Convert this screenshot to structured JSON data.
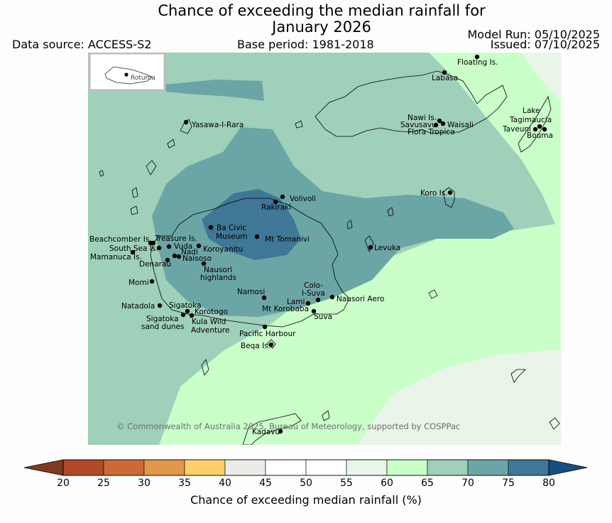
{
  "title_line1": "Chance of exceeding the median rainfall for",
  "title_line2": "January 2026",
  "data_source": "Data source: ACCESS-S2",
  "base_period": "Base period: 1981-2018",
  "model_run": "Model Run: 05/10/2025",
  "issued": "Issued: 07/10/2025",
  "copyright": "© Commonwealth of Australia 2025, Bureau of Meteorology, supported by COSPPac",
  "inset_label": "Rotuma",
  "colorbar": {
    "label": "Chance of exceeding median rainfall (%)",
    "ticks": [
      "20",
      "25",
      "30",
      "35",
      "40",
      "45",
      "50",
      "55",
      "60",
      "65",
      "70",
      "75",
      "80"
    ],
    "colors": [
      "#b04a27",
      "#cc6a36",
      "#e3974a",
      "#fecf69",
      "#ebebe8",
      "#ffffff",
      "#ffffff",
      "#e8f5e8",
      "#caffca",
      "#9ed0ba",
      "#6ca5a5",
      "#3f7896"
    ],
    "low_color": "#823a20",
    "high_color": "#154f82"
  },
  "places": [
    {
      "name": "Floating Is."
    },
    {
      "name": "Labasa"
    },
    {
      "name": "Yasawa-I-Rara"
    },
    {
      "name": "Nawi Is."
    },
    {
      "name": "Savusavu"
    },
    {
      "name": "Waisali"
    },
    {
      "name": "Flora Tropica"
    },
    {
      "name": "Lake"
    },
    {
      "name": "Tagimaucia"
    },
    {
      "name": "Taveuni"
    },
    {
      "name": "Bouma"
    },
    {
      "name": "Volivoli"
    },
    {
      "name": "Rakiraki"
    },
    {
      "name": "Koro Is."
    },
    {
      "name": "Ba Civic"
    },
    {
      "name": "Museum"
    },
    {
      "name": "Mt Tomanivi"
    },
    {
      "name": "Beachcomber Is."
    },
    {
      "name": "Treasure Is."
    },
    {
      "name": "South Sea Is."
    },
    {
      "name": "Vuda"
    },
    {
      "name": "Koroyanitu"
    },
    {
      "name": "Nadi"
    },
    {
      "name": "Mamanuca Is."
    },
    {
      "name": "Naisoso"
    },
    {
      "name": "Denarau"
    },
    {
      "name": "Levuka"
    },
    {
      "name": "Nausori"
    },
    {
      "name": "highlands"
    },
    {
      "name": "Momi"
    },
    {
      "name": "Namosi"
    },
    {
      "name": "Colo-"
    },
    {
      "name": "I-Suva"
    },
    {
      "name": "Lami"
    },
    {
      "name": "Nausori Aero"
    },
    {
      "name": "Mt Korobaba"
    },
    {
      "name": "Natadola"
    },
    {
      "name": "Sigatoka"
    },
    {
      "name": "Korotogo"
    },
    {
      "name": "Suva"
    },
    {
      "name": "Sigatoka"
    },
    {
      "name": "Kula Wild"
    },
    {
      "name": "sand dunes"
    },
    {
      "name": "Adventure"
    },
    {
      "name": "Pacific Harbour"
    },
    {
      "name": "Beqa Is."
    },
    {
      "name": "Kadavu"
    }
  ]
}
